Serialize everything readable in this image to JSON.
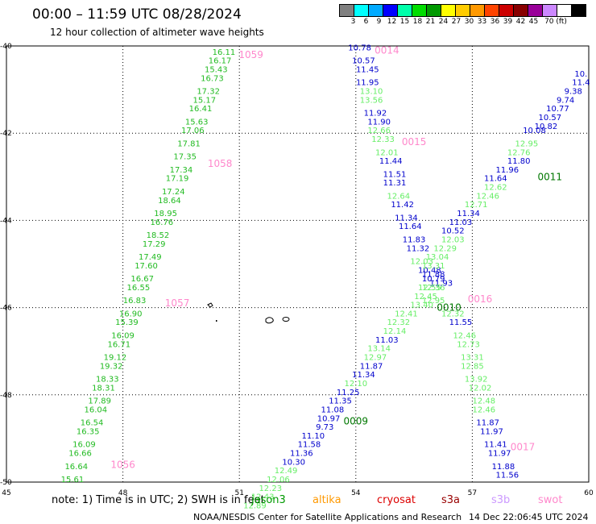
{
  "header": {
    "title": "00:00 – 11:59 UTC 08/28/2024",
    "subtitle": "12 hour collection of altimeter wave heights"
  },
  "color_scale": {
    "colors": [
      "#808080",
      "#00ffff",
      "#00aaff",
      "#0000ff",
      "#00ffaa",
      "#00dd00",
      "#009900",
      "#ffff00",
      "#ffcc00",
      "#ff9900",
      "#ff4400",
      "#cc0000",
      "#880000",
      "#990099",
      "#cc88ff",
      "#ffffff",
      "#000000"
    ],
    "labels": [
      "3",
      "6",
      "9",
      "12",
      "15",
      "18",
      "21",
      "24",
      "27",
      "30",
      "33",
      "36",
      "39",
      "42",
      "45",
      "70 (ft)"
    ]
  },
  "axes": {
    "x_ticks": [
      "45",
      "48",
      "51",
      "54",
      "57",
      "60"
    ],
    "y_ticks": [
      "-40",
      "-42",
      "-44",
      "-46",
      "-48",
      "-50"
    ],
    "lon_range": [
      45,
      60
    ],
    "lat_range": [
      -50,
      -40
    ]
  },
  "tracks": [
    {
      "label": "1059",
      "label_color": "#ff88cc",
      "label_at": [
        51.3,
        -40.2
      ],
      "points": [
        {
          "v": "16.11",
          "c": "#22bb22",
          "lon": 50.6,
          "lat": -40.2
        },
        {
          "v": "16.17",
          "c": "#22bb22",
          "lon": 50.5,
          "lat": -40.4
        },
        {
          "v": "15.43",
          "c": "#22bb22",
          "lon": 50.4,
          "lat": -40.6
        },
        {
          "v": "16.73",
          "c": "#22bb22",
          "lon": 50.3,
          "lat": -40.8
        },
        {
          "v": "17.32",
          "c": "#22bb22",
          "lon": 50.2,
          "lat": -41.1
        },
        {
          "v": "15.17",
          "c": "#22bb22",
          "lon": 50.1,
          "lat": -41.3
        },
        {
          "v": "16.41",
          "c": "#22bb22",
          "lon": 50.0,
          "lat": -41.5
        },
        {
          "v": "15.63",
          "c": "#22bb22",
          "lon": 49.9,
          "lat": -41.8
        },
        {
          "v": "17.06",
          "c": "#22bb22",
          "lon": 49.8,
          "lat": -42.0
        },
        {
          "v": "17.81",
          "c": "#22bb22",
          "lon": 49.7,
          "lat": -42.3
        }
      ]
    },
    {
      "label": "1058",
      "label_color": "#ff88cc",
      "label_at": [
        50.5,
        -42.7
      ],
      "points": [
        {
          "v": "17.35",
          "c": "#22bb22",
          "lon": 49.6,
          "lat": -42.6
        },
        {
          "v": "17.34",
          "c": "#22bb22",
          "lon": 49.5,
          "lat": -42.9
        },
        {
          "v": "17.19",
          "c": "#22bb22",
          "lon": 49.4,
          "lat": -43.1
        },
        {
          "v": "17.24",
          "c": "#22bb22",
          "lon": 49.3,
          "lat": -43.4
        },
        {
          "v": "18.64",
          "c": "#22bb22",
          "lon": 49.2,
          "lat": -43.6
        },
        {
          "v": "18.95",
          "c": "#22bb22",
          "lon": 49.1,
          "lat": -43.9
        },
        {
          "v": "16.76",
          "c": "#22bb22",
          "lon": 49.0,
          "lat": -44.1
        },
        {
          "v": "18.52",
          "c": "#22bb22",
          "lon": 48.9,
          "lat": -44.4
        },
        {
          "v": "17.29",
          "c": "#22bb22",
          "lon": 48.8,
          "lat": -44.6
        },
        {
          "v": "17.49",
          "c": "#22bb22",
          "lon": 48.7,
          "lat": -44.9
        },
        {
          "v": "17.60",
          "c": "#22bb22",
          "lon": 48.6,
          "lat": -45.1
        },
        {
          "v": "16.67",
          "c": "#22bb22",
          "lon": 48.5,
          "lat": -45.4
        },
        {
          "v": "16.55",
          "c": "#22bb22",
          "lon": 48.4,
          "lat": -45.6
        }
      ]
    },
    {
      "label": "1057",
      "label_color": "#ff88cc",
      "label_at": [
        49.4,
        -45.9
      ],
      "points": [
        {
          "v": "16.83",
          "c": "#22bb22",
          "lon": 48.3,
          "lat": -45.9
        },
        {
          "v": "16.90",
          "c": "#22bb22",
          "lon": 48.2,
          "lat": -46.2
        },
        {
          "v": "15.39",
          "c": "#22bb22",
          "lon": 48.1,
          "lat": -46.4
        },
        {
          "v": "16.09",
          "c": "#22bb22",
          "lon": 48.0,
          "lat": -46.7
        },
        {
          "v": "16.71",
          "c": "#22bb22",
          "lon": 47.9,
          "lat": -46.9
        },
        {
          "v": "19.12",
          "c": "#22bb22",
          "lon": 47.8,
          "lat": -47.2
        },
        {
          "v": "19.32",
          "c": "#22bb22",
          "lon": 47.7,
          "lat": -47.4
        },
        {
          "v": "18.33",
          "c": "#22bb22",
          "lon": 47.6,
          "lat": -47.7
        },
        {
          "v": "18.31",
          "c": "#22bb22",
          "lon": 47.5,
          "lat": -47.9
        },
        {
          "v": "17.89",
          "c": "#22bb22",
          "lon": 47.4,
          "lat": -48.2
        },
        {
          "v": "16.04",
          "c": "#22bb22",
          "lon": 47.3,
          "lat": -48.4
        },
        {
          "v": "16.54",
          "c": "#22bb22",
          "lon": 47.2,
          "lat": -48.7
        },
        {
          "v": "16.35",
          "c": "#22bb22",
          "lon": 47.1,
          "lat": -48.9
        }
      ]
    },
    {
      "label": "1056",
      "label_color": "#ff88cc",
      "label_at": [
        48.0,
        -49.6
      ],
      "points": [
        {
          "v": "16.09",
          "c": "#22bb22",
          "lon": 47.0,
          "lat": -49.2
        },
        {
          "v": "16.66",
          "c": "#22bb22",
          "lon": 46.9,
          "lat": -49.4
        },
        {
          "v": "16.64",
          "c": "#22bb22",
          "lon": 46.8,
          "lat": -49.7
        },
        {
          "v": "15.61",
          "c": "#22bb22",
          "lon": 46.7,
          "lat": -50.0
        }
      ]
    },
    {
      "label": "0014",
      "label_color": "#ff88cc",
      "label_at": [
        54.8,
        -40.1
      ],
      "points": [
        {
          "v": "10.78",
          "c": "#0000cc",
          "lon": 54.1,
          "lat": -40.1
        },
        {
          "v": "10.57",
          "c": "#0000cc",
          "lon": 54.2,
          "lat": -40.4
        },
        {
          "v": "11.45",
          "c": "#0000cc",
          "lon": 54.3,
          "lat": -40.6
        },
        {
          "v": "11.95",
          "c": "#0000cc",
          "lon": 54.3,
          "lat": -40.9
        },
        {
          "v": "13.10",
          "c": "#66ee66",
          "lon": 54.4,
          "lat": -41.1
        },
        {
          "v": "13.56",
          "c": "#66ee66",
          "lon": 54.4,
          "lat": -41.3
        },
        {
          "v": "11.92",
          "c": "#0000cc",
          "lon": 54.5,
          "lat": -41.6
        },
        {
          "v": "11.90",
          "c": "#0000cc",
          "lon": 54.6,
          "lat": -41.8
        },
        {
          "v": "12.66",
          "c": "#66ee66",
          "lon": 54.6,
          "lat": -42.0
        }
      ]
    },
    {
      "label": "0015",
      "label_color": "#ff88cc",
      "label_at": [
        55.5,
        -42.2
      ],
      "points": [
        {
          "v": "12.33",
          "c": "#66ee66",
          "lon": 54.7,
          "lat": -42.2
        },
        {
          "v": "12.01",
          "c": "#66ee66",
          "lon": 54.8,
          "lat": -42.5
        },
        {
          "v": "11.44",
          "c": "#0000cc",
          "lon": 54.9,
          "lat": -42.7
        },
        {
          "v": "11.51",
          "c": "#0000cc",
          "lon": 55.0,
          "lat": -43.0
        },
        {
          "v": "11.31",
          "c": "#0000cc",
          "lon": 55.0,
          "lat": -43.2
        },
        {
          "v": "12.64",
          "c": "#66ee66",
          "lon": 55.1,
          "lat": -43.5
        },
        {
          "v": "11.42",
          "c": "#0000cc",
          "lon": 55.2,
          "lat": -43.7
        },
        {
          "v": "11.34",
          "c": "#0000cc",
          "lon": 55.3,
          "lat": -44.0
        },
        {
          "v": "11.64",
          "c": "#0000cc",
          "lon": 55.4,
          "lat": -44.2
        },
        {
          "v": "11.83",
          "c": "#0000cc",
          "lon": 55.5,
          "lat": -44.5
        },
        {
          "v": "11.32",
          "c": "#0000cc",
          "lon": 55.6,
          "lat": -44.7
        },
        {
          "v": "12.03",
          "c": "#66ee66",
          "lon": 55.7,
          "lat": -45.0
        },
        {
          "v": "10.48",
          "c": "#0000cc",
          "lon": 55.9,
          "lat": -45.2
        },
        {
          "v": "10.79",
          "c": "#0000cc",
          "lon": 56.0,
          "lat": -45.4
        },
        {
          "v": "12.36",
          "c": "#66ee66",
          "lon": 56.0,
          "lat": -45.6
        }
      ]
    },
    {
      "label": "0016",
      "label_color": "#ff88cc",
      "label_at": [
        57.2,
        -45.8
      ],
      "points": [
        {
          "v": "12.95",
          "c": "#66ee66",
          "lon": 56.0,
          "lat": -45.9
        },
        {
          "v": "12.32",
          "c": "#66ee66",
          "lon": 56.5,
          "lat": -46.2
        },
        {
          "v": "11.55",
          "c": "#0000cc",
          "lon": 56.7,
          "lat": -46.4
        },
        {
          "v": "12.46",
          "c": "#66ee66",
          "lon": 56.8,
          "lat": -46.7
        },
        {
          "v": "12.73",
          "c": "#66ee66",
          "lon": 56.9,
          "lat": -46.9
        },
        {
          "v": "13.31",
          "c": "#66ee66",
          "lon": 57.0,
          "lat": -47.2
        },
        {
          "v": "12.85",
          "c": "#66ee66",
          "lon": 57.0,
          "lat": -47.4
        },
        {
          "v": "13.92",
          "c": "#66ee66",
          "lon": 57.1,
          "lat": -47.7
        },
        {
          "v": "12.02",
          "c": "#66ee66",
          "lon": 57.2,
          "lat": -47.9
        },
        {
          "v": "12.48",
          "c": "#66ee66",
          "lon": 57.3,
          "lat": -48.2
        },
        {
          "v": "12.46",
          "c": "#66ee66",
          "lon": 57.3,
          "lat": -48.4
        },
        {
          "v": "11.87",
          "c": "#0000cc",
          "lon": 57.4,
          "lat": -48.7
        },
        {
          "v": "11.97",
          "c": "#0000cc",
          "lon": 57.5,
          "lat": -48.9
        },
        {
          "v": "11.41",
          "c": "#0000cc",
          "lon": 57.6,
          "lat": -49.2
        }
      ]
    },
    {
      "label": "0017",
      "label_color": "#ff88cc",
      "label_at": [
        58.3,
        -49.2
      ],
      "points": [
        {
          "v": "11.97",
          "c": "#0000cc",
          "lon": 57.7,
          "lat": -49.4
        },
        {
          "v": "11.88",
          "c": "#0000cc",
          "lon": 57.8,
          "lat": -49.7
        },
        {
          "v": "11.56",
          "c": "#0000cc",
          "lon": 57.9,
          "lat": -49.9
        }
      ]
    },
    {
      "label": "0011",
      "label_color": "#007700",
      "label_at": [
        59.0,
        -43.0
      ],
      "points": [
        {
          "v": "10.",
          "c": "#0000cc",
          "lon": 59.8,
          "lat": -40.7
        },
        {
          "v": "11.4",
          "c": "#0000cc",
          "lon": 59.8,
          "lat": -40.9
        },
        {
          "v": "9.38",
          "c": "#0000cc",
          "lon": 59.6,
          "lat": -41.1
        },
        {
          "v": "9.74",
          "c": "#0000cc",
          "lon": 59.4,
          "lat": -41.3
        },
        {
          "v": "10.77",
          "c": "#0000cc",
          "lon": 59.2,
          "lat": -41.5
        },
        {
          "v": "10.57",
          "c": "#0000cc",
          "lon": 59.0,
          "lat": -41.7
        },
        {
          "v": "10.82",
          "c": "#0000cc",
          "lon": 58.9,
          "lat": -41.9
        },
        {
          "v": "10.08",
          "c": "#0000cc",
          "lon": 58.6,
          "lat": -42.0
        },
        {
          "v": "12.95",
          "c": "#66ee66",
          "lon": 58.4,
          "lat": -42.3
        },
        {
          "v": "12.76",
          "c": "#66ee66",
          "lon": 58.2,
          "lat": -42.5
        },
        {
          "v": "11.80",
          "c": "#0000cc",
          "lon": 58.2,
          "lat": -42.7
        },
        {
          "v": "11.96",
          "c": "#0000cc",
          "lon": 57.9,
          "lat": -42.9
        },
        {
          "v": "11.64",
          "c": "#0000cc",
          "lon": 57.6,
          "lat": -43.1
        },
        {
          "v": "12.62",
          "c": "#66ee66",
          "lon": 57.6,
          "lat": -43.3
        },
        {
          "v": "12.46",
          "c": "#66ee66",
          "lon": 57.4,
          "lat": -43.5
        },
        {
          "v": "12.71",
          "c": "#66ee66",
          "lon": 57.1,
          "lat": -43.7
        },
        {
          "v": "11.34",
          "c": "#0000cc",
          "lon": 56.9,
          "lat": -43.9
        },
        {
          "v": "11.03",
          "c": "#0000cc",
          "lon": 56.7,
          "lat": -44.1
        },
        {
          "v": "10.52",
          "c": "#0000cc",
          "lon": 56.5,
          "lat": -44.3
        },
        {
          "v": "12.03",
          "c": "#66ee66",
          "lon": 56.5,
          "lat": -44.5
        },
        {
          "v": "12.29",
          "c": "#66ee66",
          "lon": 56.3,
          "lat": -44.7
        },
        {
          "v": "13.04",
          "c": "#66ee66",
          "lon": 56.1,
          "lat": -44.9
        },
        {
          "v": "13.31",
          "c": "#66ee66",
          "lon": 56.0,
          "lat": -45.1
        },
        {
          "v": "11.88",
          "c": "#0000cc",
          "lon": 56.0,
          "lat": -45.3
        },
        {
          "v": "11.93",
          "c": "#0000cc",
          "lon": 56.2,
          "lat": -45.5
        }
      ]
    },
    {
      "label": "0010",
      "label_color": "#007700",
      "label_at": [
        56.4,
        -46.0
      ],
      "points": [
        {
          "v": "12.55",
          "c": "#66ee66",
          "lon": 55.9,
          "lat": -45.6
        },
        {
          "v": "12.45",
          "c": "#66ee66",
          "lon": 55.8,
          "lat": -45.8
        },
        {
          "v": "13.40",
          "c": "#66ee66",
          "lon": 55.7,
          "lat": -46.0
        },
        {
          "v": "12.41",
          "c": "#66ee66",
          "lon": 55.3,
          "lat": -46.2
        },
        {
          "v": "12.32",
          "c": "#66ee66",
          "lon": 55.1,
          "lat": -46.4
        },
        {
          "v": "12.14",
          "c": "#66ee66",
          "lon": 55.0,
          "lat": -46.6
        },
        {
          "v": "11.03",
          "c": "#0000cc",
          "lon": 54.8,
          "lat": -46.8
        },
        {
          "v": "13.14",
          "c": "#66ee66",
          "lon": 54.6,
          "lat": -47.0
        },
        {
          "v": "12.97",
          "c": "#66ee66",
          "lon": 54.5,
          "lat": -47.2
        },
        {
          "v": "11.87",
          "c": "#0000cc",
          "lon": 54.4,
          "lat": -47.4
        },
        {
          "v": "11.34",
          "c": "#0000cc",
          "lon": 54.2,
          "lat": -47.6
        },
        {
          "v": "12.10",
          "c": "#66ee66",
          "lon": 54.0,
          "lat": -47.8
        },
        {
          "v": "11.25",
          "c": "#0000cc",
          "lon": 53.8,
          "lat": -48.0
        },
        {
          "v": "11.35",
          "c": "#0000cc",
          "lon": 53.6,
          "lat": -48.2
        },
        {
          "v": "11.08",
          "c": "#0000cc",
          "lon": 53.4,
          "lat": -48.4
        }
      ]
    },
    {
      "label": "0009",
      "label_color": "#007700",
      "label_at": [
        54.0,
        -48.6
      ],
      "points": [
        {
          "v": "10.97",
          "c": "#0000cc",
          "lon": 53.3,
          "lat": -48.6
        },
        {
          "v": "9.73",
          "c": "#0000cc",
          "lon": 53.2,
          "lat": -48.8
        },
        {
          "v": "11.10",
          "c": "#0000cc",
          "lon": 52.9,
          "lat": -49.0
        },
        {
          "v": "11.58",
          "c": "#0000cc",
          "lon": 52.8,
          "lat": -49.2
        },
        {
          "v": "11.36",
          "c": "#0000cc",
          "lon": 52.6,
          "lat": -49.4
        },
        {
          "v": "10.30",
          "c": "#0000cc",
          "lon": 52.4,
          "lat": -49.6
        },
        {
          "v": "12.49",
          "c": "#66ee66",
          "lon": 52.2,
          "lat": -49.8
        },
        {
          "v": "12.06",
          "c": "#66ee66",
          "lon": 52.0,
          "lat": -50.0
        },
        {
          "v": "12.23",
          "c": "#66ee66",
          "lon": 51.8,
          "lat": -50.2
        },
        {
          "v": "12.43",
          "c": "#66ee66",
          "lon": 51.6,
          "lat": -50.4
        },
        {
          "v": "12.89",
          "c": "#66ee66",
          "lon": 51.4,
          "lat": -50.6
        }
      ]
    }
  ],
  "footer": {
    "note": "note: 1) Time is in UTC; 2) SWH is in feet",
    "legend": [
      {
        "label": "jason3",
        "color": "#009900"
      },
      {
        "label": "altika",
        "color": "#ff9900"
      },
      {
        "label": "cryosat",
        "color": "#dd0000"
      },
      {
        "label": "s3a",
        "color": "#990000"
      },
      {
        "label": "s3b",
        "color": "#cc99ff"
      },
      {
        "label": "swot",
        "color": "#ff88cc"
      }
    ],
    "credit": "NOAA/NESDIS Center for Satellite Applications and Research",
    "timestamp": "14 Dec 22:06:45 UTC 2024"
  }
}
